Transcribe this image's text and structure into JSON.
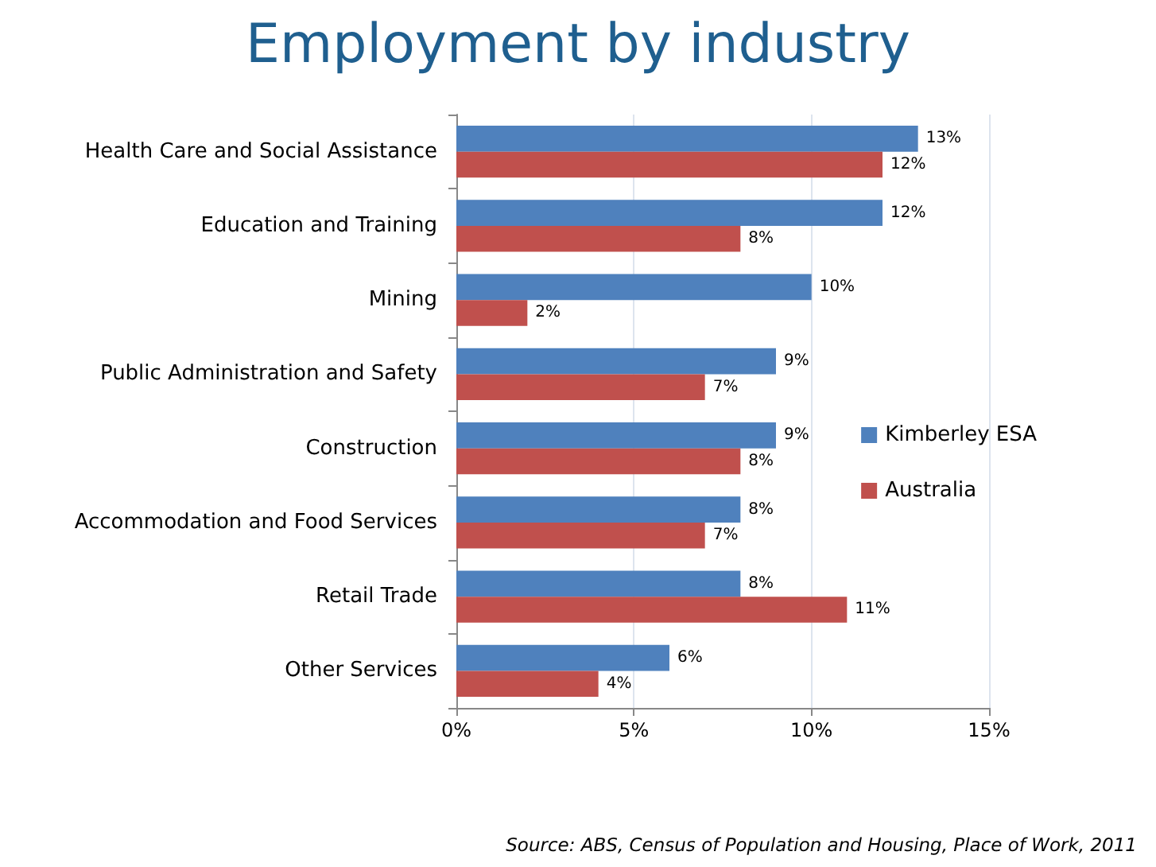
{
  "chart_data": {
    "type": "bar",
    "orientation": "horizontal",
    "title": "Employment by industry",
    "categories": [
      "Health Care and Social Assistance",
      "Education and Training",
      "Mining",
      "Public Administration and Safety",
      "Construction",
      "Accommodation and Food Services",
      "Retail Trade",
      "Other Services"
    ],
    "series": [
      {
        "name": "Kimberley ESA",
        "color": "#4f81bd",
        "values": [
          13,
          12,
          10,
          9,
          9,
          8,
          8,
          6
        ],
        "value_labels": [
          "13%",
          "12%",
          "10%",
          "9%",
          "9%",
          "8%",
          "8%",
          "6%"
        ]
      },
      {
        "name": "Australia",
        "color": "#c0504d",
        "values": [
          12,
          8,
          2,
          7,
          8,
          7,
          11,
          4
        ],
        "value_labels": [
          "12%",
          "8%",
          "2%",
          "7%",
          "8%",
          "7%",
          "11%",
          "4%"
        ]
      }
    ],
    "xlim": [
      0,
      15
    ],
    "xticks": [
      {
        "value": 0,
        "label": "0%"
      },
      {
        "value": 5,
        "label": "5%"
      },
      {
        "value": 10,
        "label": "10%"
      },
      {
        "value": 15,
        "label": "15%"
      }
    ],
    "grid": "x",
    "legend": "right",
    "annotations": [
      "Source: ABS, Census of Population and Housing, Place of Work, 2011"
    ]
  }
}
